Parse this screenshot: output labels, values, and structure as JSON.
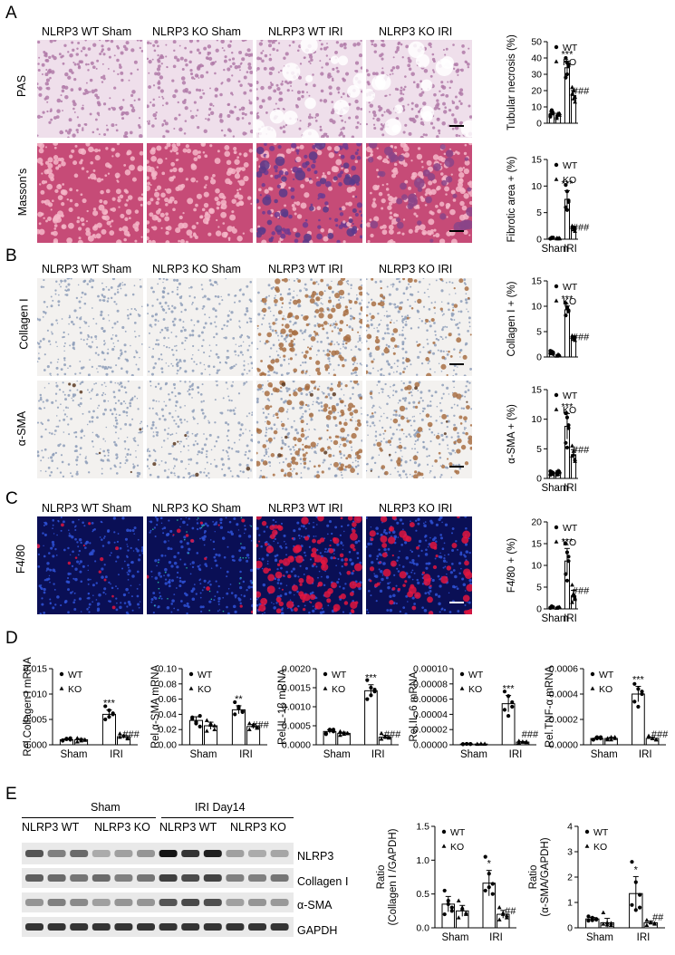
{
  "panels": {
    "A": "A",
    "B": "B",
    "C": "C",
    "D": "D",
    "E": "E"
  },
  "groups": [
    "NLRP3 WT Sham",
    "NLRP3 KO Sham",
    "NLRP3 WT IRI",
    "NLRP3 KO IRI"
  ],
  "row_labels": {
    "pas": "PAS",
    "masson": "Masson's",
    "collagen": "Collagen Ⅰ",
    "asma": "α-SMA",
    "f480": "F4/80"
  },
  "colors": {
    "pas_bg": "#efe3ec",
    "masson_bg": "#c64b77",
    "masson_iri": "#7a3c8e",
    "ihc_bg": "#f3f1ef",
    "ihc_brown": "#a87044",
    "if_bg": "#0a0f55",
    "if_red": "#e01540"
  },
  "legend": {
    "wt": "WT",
    "ko": "KO"
  },
  "chart_data": [
    {
      "id": "tubular",
      "type": "bar",
      "ylabel": "Tubular necrosis (%)",
      "categories": [
        "Sham",
        "IRI"
      ],
      "ylim": [
        0,
        50
      ],
      "yticks": [
        0,
        10,
        20,
        30,
        40,
        50
      ],
      "show_xlabels": false,
      "series": [
        {
          "name": "WT",
          "values": [
            6,
            34
          ],
          "pts": [
            [
              5,
              7,
              6,
              4,
              8,
              6
            ],
            [
              40,
              30,
              35,
              28,
              37,
              36
            ]
          ]
        },
        {
          "name": "KO",
          "values": [
            5,
            17
          ],
          "pts": [
            [
              4,
              6,
              5,
              3,
              5,
              6
            ],
            [
              22,
              15,
              13,
              18,
              20,
              16
            ]
          ]
        }
      ],
      "annotations": [
        {
          "text": "***",
          "cat": 1,
          "s": 0
        },
        {
          "text": "###",
          "cat": 1,
          "s": 1
        }
      ]
    },
    {
      "id": "fibrotic",
      "type": "bar",
      "ylabel": "Fibrotic area + (%)",
      "categories": [
        "Sham",
        "IRI"
      ],
      "ylim": [
        0,
        15
      ],
      "yticks": [
        0,
        5,
        10,
        15
      ],
      "show_xlabels": true,
      "series": [
        {
          "name": "WT",
          "values": [
            0.2,
            7.5
          ],
          "pts": [
            [
              0.1,
              0.3,
              0.2,
              0.1,
              0.2,
              0.3
            ],
            [
              10.2,
              9,
              7,
              6,
              5.5,
              7.3
            ]
          ]
        },
        {
          "name": "KO",
          "values": [
            0.15,
            2
          ],
          "pts": [
            [
              0.1,
              0.2,
              0.1,
              0.2,
              0.1,
              0.2
            ],
            [
              2.5,
              1.8,
              1.5,
              2.2,
              1.9,
              2.1
            ]
          ]
        }
      ],
      "annotations": [
        {
          "text": "***",
          "cat": 1,
          "s": 0
        },
        {
          "text": "###",
          "cat": 1,
          "s": 1
        }
      ]
    },
    {
      "id": "collagen",
      "type": "bar",
      "ylabel": "Collagen Ⅰ + (%)",
      "categories": [
        "Sham",
        "IRI"
      ],
      "ylim": [
        0,
        15
      ],
      "yticks": [
        0,
        5,
        10,
        15
      ],
      "show_xlabels": false,
      "series": [
        {
          "name": "WT",
          "values": [
            0.9,
            9.3
          ],
          "pts": [
            [
              0.7,
              1.1,
              0.9,
              1.2,
              0.8,
              0.6
            ],
            [
              10.6,
              9.8,
              9,
              8.2,
              9.6,
              9.2
            ]
          ]
        },
        {
          "name": "KO",
          "values": [
            0.3,
            3.7
          ],
          "pts": [
            [
              0.2,
              0.4,
              0.3,
              0.2,
              0.5,
              0.3
            ],
            [
              4.2,
              3.5,
              3.3,
              3.9,
              3.6,
              4
            ]
          ]
        }
      ],
      "annotations": [
        {
          "text": "***",
          "cat": 1,
          "s": 0
        },
        {
          "text": "###",
          "cat": 1,
          "s": 1
        }
      ]
    },
    {
      "id": "asma",
      "type": "bar",
      "ylabel": "α-SMA + (%)",
      "categories": [
        "Sham",
        "IRI"
      ],
      "ylim": [
        0,
        15
      ],
      "yticks": [
        0,
        5,
        10,
        15
      ],
      "show_xlabels": true,
      "series": [
        {
          "name": "WT",
          "values": [
            0.9,
            8.8
          ],
          "pts": [
            [
              0.6,
              1.1,
              0.9,
              1.2,
              0.8,
              0.7
            ],
            [
              11,
              10.3,
              8.5,
              6,
              5.2,
              9
            ]
          ]
        },
        {
          "name": "KO",
          "values": [
            1,
            4
          ],
          "pts": [
            [
              0.6,
              1.3,
              1,
              1.1,
              0.7,
              1.2
            ],
            [
              5.5,
              4,
              3.2,
              3.8,
              4.6,
              2.9
            ]
          ]
        }
      ],
      "annotations": [
        {
          "text": "***",
          "cat": 1,
          "s": 0
        },
        {
          "text": "###",
          "cat": 1,
          "s": 1
        }
      ]
    },
    {
      "id": "f480",
      "type": "bar",
      "ylabel": "F4/80 + (%)",
      "categories": [
        "Sham",
        "IRI"
      ],
      "ylim": [
        0,
        20
      ],
      "yticks": [
        0,
        5,
        10,
        15,
        20
      ],
      "show_xlabels": true,
      "series": [
        {
          "name": "WT",
          "values": [
            0.4,
            11
          ],
          "pts": [
            [
              0.3,
              0.5,
              0.4,
              0.2,
              0.6,
              0.4
            ],
            [
              15,
              13,
              11,
              8,
              6.5,
              12
            ]
          ]
        },
        {
          "name": "KO",
          "values": [
            0.3,
            3
          ],
          "pts": [
            [
              0.2,
              0.4,
              0.3,
              0.2,
              0.3,
              0.4
            ],
            [
              5.5,
              3.5,
              2.2,
              1.5,
              3,
              2.5
            ]
          ]
        }
      ],
      "annotations": [
        {
          "text": "***",
          "cat": 1,
          "s": 0
        },
        {
          "text": "###",
          "cat": 1,
          "s": 1
        }
      ]
    },
    {
      "id": "d_col",
      "type": "bar",
      "ylabel": "Rel.Collagen Ⅰ mRNA",
      "categories": [
        "Sham",
        "IRI"
      ],
      "ylim": [
        0,
        0.015
      ],
      "yticks": [
        0,
        0.005,
        0.01,
        0.015
      ],
      "ytick_labels": [
        "0.000",
        "0.005",
        "0.010",
        "0.015"
      ],
      "show_xlabels": true,
      "series": [
        {
          "name": "WT",
          "values": [
            0.001,
            0.006
          ],
          "pts": [
            [
              0.0008,
              0.0012,
              0.001,
              0.0009,
              0.0011,
              0.0013
            ],
            [
              0.0076,
              0.0068,
              0.006,
              0.005,
              0.0055,
              0.0062
            ]
          ]
        },
        {
          "name": "KO",
          "values": [
            0.001,
            0.0016
          ],
          "pts": [
            [
              0.0006,
              0.0011,
              0.0009,
              0.0013,
              0.0008,
              0.001
            ],
            [
              0.0022,
              0.0018,
              0.0012,
              0.0015,
              0.0017,
              0.0014
            ]
          ]
        }
      ],
      "annotations": [
        {
          "text": "***",
          "cat": 1,
          "s": 0
        },
        {
          "text": "###",
          "cat": 1,
          "s": 1
        }
      ]
    },
    {
      "id": "d_asma",
      "type": "bar",
      "ylabel": "Rel.α-SMA mRNA",
      "categories": [
        "Sham",
        "IRI"
      ],
      "ylim": [
        0,
        0.1
      ],
      "yticks": [
        0,
        0.02,
        0.04,
        0.06,
        0.08,
        0.1
      ],
      "ytick_labels": [
        "0.00",
        "0.02",
        "0.04",
        "0.06",
        "0.08",
        "0.10"
      ],
      "show_xlabels": true,
      "series": [
        {
          "name": "WT",
          "values": [
            0.032,
            0.046
          ],
          "pts": [
            [
              0.036,
              0.03,
              0.024,
              0.034,
              0.028,
              0.038
            ],
            [
              0.056,
              0.05,
              0.044,
              0.04,
              0.048,
              0.043
            ]
          ]
        },
        {
          "name": "KO",
          "values": [
            0.025,
            0.024
          ],
          "pts": [
            [
              0.032,
              0.026,
              0.02,
              0.018,
              0.028,
              0.025
            ],
            [
              0.028,
              0.025,
              0.022,
              0.02,
              0.026,
              0.023
            ]
          ]
        }
      ],
      "annotations": [
        {
          "text": "**",
          "cat": 1,
          "s": 0
        },
        {
          "text": "###",
          "cat": 1,
          "s": 1
        }
      ]
    },
    {
      "id": "d_il1b",
      "type": "bar",
      "ylabel": "Rel.IL-1β mRNA",
      "categories": [
        "Sham",
        "IRI"
      ],
      "ylim": [
        0,
        0.002
      ],
      "yticks": [
        0,
        0.0005,
        0.001,
        0.0015,
        0.002
      ],
      "ytick_labels": [
        "0.0000",
        "0.0005",
        "0.0010",
        "0.0015",
        "0.0020"
      ],
      "show_xlabels": true,
      "series": [
        {
          "name": "WT",
          "values": [
            0.00035,
            0.00142
          ],
          "pts": [
            [
              0.0003,
              0.0004,
              0.00035,
              0.00028,
              0.00038,
              0.0004
            ],
            [
              0.0017,
              0.0015,
              0.0014,
              0.0012,
              0.0013,
              0.00145
            ]
          ]
        },
        {
          "name": "KO",
          "values": [
            0.0003,
            0.0002
          ],
          "pts": [
            [
              0.00025,
              0.00032,
              0.0003,
              0.00035,
              0.00028,
              0.0003
            ],
            [
              0.0003,
              0.0002,
              0.00018,
              0.00015,
              0.00022,
              0.0002
            ]
          ]
        }
      ],
      "annotations": [
        {
          "text": "***",
          "cat": 1,
          "s": 0
        },
        {
          "text": "###",
          "cat": 1,
          "s": 1
        }
      ]
    },
    {
      "id": "d_il6",
      "type": "bar",
      "ylabel": "Rel.IL-6 mRNA",
      "categories": [
        "Sham",
        "IRI"
      ],
      "ylim": [
        0,
        0.0001
      ],
      "yticks": [
        0,
        2e-05,
        4e-05,
        6e-05,
        8e-05,
        0.0001
      ],
      "ytick_labels": [
        "0.00000",
        "0.00002",
        "0.00004",
        "0.00006",
        "0.00008",
        "0.00010"
      ],
      "show_xlabels": true,
      "series": [
        {
          "name": "WT",
          "values": [
            1e-06,
            5.4e-05
          ],
          "pts": [
            [
              8e-07,
              1.2e-06,
              1e-06,
              9e-07,
              1.1e-06,
              1e-06
            ],
            [
              7e-05,
              6.4e-05,
              5.6e-05,
              4.6e-05,
              3.8e-05,
              5e-05
            ]
          ]
        },
        {
          "name": "KO",
          "values": [
            1e-06,
            3.5e-06
          ],
          "pts": [
            [
              8e-07,
              1.2e-06,
              1e-06,
              9e-07,
              1.1e-06,
              1e-06
            ],
            [
              5e-06,
              4e-06,
              3e-06,
              2.5e-06,
              3.5e-06,
              4e-06
            ]
          ]
        }
      ],
      "annotations": [
        {
          "text": "***",
          "cat": 1,
          "s": 0
        },
        {
          "text": "###",
          "cat": 1,
          "s": 1
        }
      ]
    },
    {
      "id": "d_tnf",
      "type": "bar",
      "ylabel": "Rel.TNF-α mRNA",
      "categories": [
        "Sham",
        "IRI"
      ],
      "ylim": [
        0,
        0.0006
      ],
      "yticks": [
        0,
        0.0002,
        0.0004,
        0.0006
      ],
      "ytick_labels": [
        "0.0000",
        "0.0002",
        "0.0004",
        "0.0006"
      ],
      "show_xlabels": true,
      "series": [
        {
          "name": "WT",
          "values": [
            5e-05,
            0.0004
          ],
          "pts": [
            [
              4e-05,
              6e-05,
              5e-05,
              4e-05,
              5e-05,
              6e-05
            ],
            [
              0.00048,
              0.00044,
              0.0004,
              0.00034,
              0.0003,
              0.00042
            ]
          ]
        },
        {
          "name": "KO",
          "values": [
            5e-05,
            5e-05
          ],
          "pts": [
            [
              4e-05,
              6e-05,
              5e-05,
              5e-05,
              4e-05,
              6e-05
            ],
            [
              7e-05,
              5e-05,
              4e-05,
              6e-05,
              5e-05,
              4e-05
            ]
          ]
        }
      ],
      "annotations": [
        {
          "text": "***",
          "cat": 1,
          "s": 0
        },
        {
          "text": "###",
          "cat": 1,
          "s": 1
        }
      ]
    },
    {
      "id": "e_col",
      "type": "bar",
      "ylabel": "Ratio\n(Collagen Ⅰ /GAPDH)",
      "categories": [
        "Sham",
        "IRI"
      ],
      "ylim": [
        0,
        1.5
      ],
      "yticks": [
        0,
        0.5,
        1,
        1.5
      ],
      "ytick_labels": [
        "0.0",
        "0.5",
        "1.0",
        "1.5"
      ],
      "show_xlabels": true,
      "series": [
        {
          "name": "WT",
          "values": [
            0.35,
            0.66
          ],
          "pts": [
            [
              0.55,
              0.4,
              0.3,
              0.2,
              0.35,
              0.25
            ],
            [
              1.05,
              0.8,
              0.65,
              0.55,
              0.6,
              0.5
            ]
          ]
        },
        {
          "name": "KO",
          "values": [
            0.25,
            0.2
          ],
          "pts": [
            [
              0.4,
              0.3,
              0.2,
              0.15,
              0.28,
              0.22
            ],
            [
              0.3,
              0.22,
              0.15,
              0.12,
              0.2,
              0.18
            ]
          ]
        }
      ],
      "annotations": [
        {
          "text": "*",
          "cat": 1,
          "s": 0
        },
        {
          "text": "##",
          "cat": 1,
          "s": 1
        }
      ]
    },
    {
      "id": "e_asma",
      "type": "bar",
      "ylabel": "Ratio\n(α-SMA/GAPDH)",
      "categories": [
        "Sham",
        "IRI"
      ],
      "ylim": [
        0,
        4
      ],
      "yticks": [
        0,
        1,
        2,
        3,
        4
      ],
      "show_xlabels": true,
      "series": [
        {
          "name": "WT",
          "values": [
            0.35,
            1.35
          ],
          "pts": [
            [
              0.45,
              0.3,
              0.35,
              0.28,
              0.4,
              0.32
            ],
            [
              2.6,
              1.8,
              1.3,
              0.9,
              0.7,
              0.8
            ]
          ]
        },
        {
          "name": "KO",
          "values": [
            0.2,
            0.2
          ],
          "pts": [
            [
              0.6,
              0.2,
              0.1,
              0.15,
              0.12,
              0.18
            ],
            [
              0.3,
              0.2,
              0.15,
              0.1,
              0.22,
              0.18
            ]
          ]
        }
      ],
      "annotations": [
        {
          "text": "*",
          "cat": 1,
          "s": 0
        },
        {
          "text": "##",
          "cat": 1,
          "s": 1
        }
      ]
    }
  ],
  "western": {
    "header_sham": "Sham",
    "header_iri": "IRI Day14",
    "lane_wt": "NLRP3 WT",
    "lane_ko": "NLRP3 KO",
    "lane_wt2": "NLRP3 WT",
    "lane_ko2": "NLRP3 KO",
    "bands": [
      "NLRP3",
      "Collagen Ⅰ",
      "α-SMA",
      "GAPDH"
    ]
  }
}
